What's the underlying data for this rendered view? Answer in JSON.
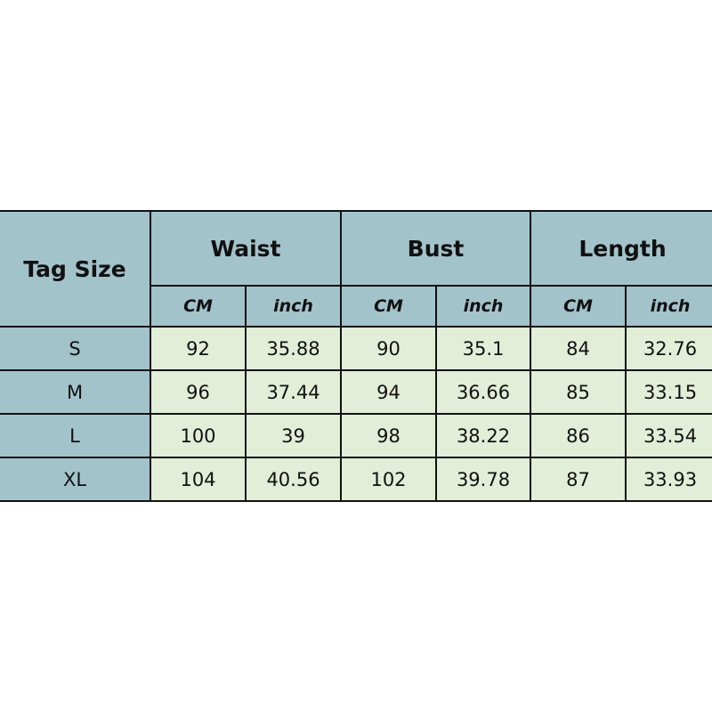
{
  "table": {
    "tag_header": "Tag Size",
    "groups": [
      "Waist",
      "Bust",
      "Length"
    ],
    "units": [
      "CM",
      "inch",
      "CM",
      "inch",
      "CM",
      "inch"
    ],
    "rows": [
      [
        "S",
        "92",
        "35.88",
        "90",
        "35.1",
        "84",
        "32.76"
      ],
      [
        "M",
        "96",
        "37.44",
        "94",
        "36.66",
        "85",
        "33.15"
      ],
      [
        "L",
        "100",
        "39",
        "98",
        "38.22",
        "86",
        "33.54"
      ],
      [
        "XL",
        "104",
        "40.56",
        "102",
        "39.78",
        "87",
        "33.93"
      ]
    ],
    "colors": {
      "header": "#a3c3cb",
      "body": "#e2eed8"
    }
  }
}
